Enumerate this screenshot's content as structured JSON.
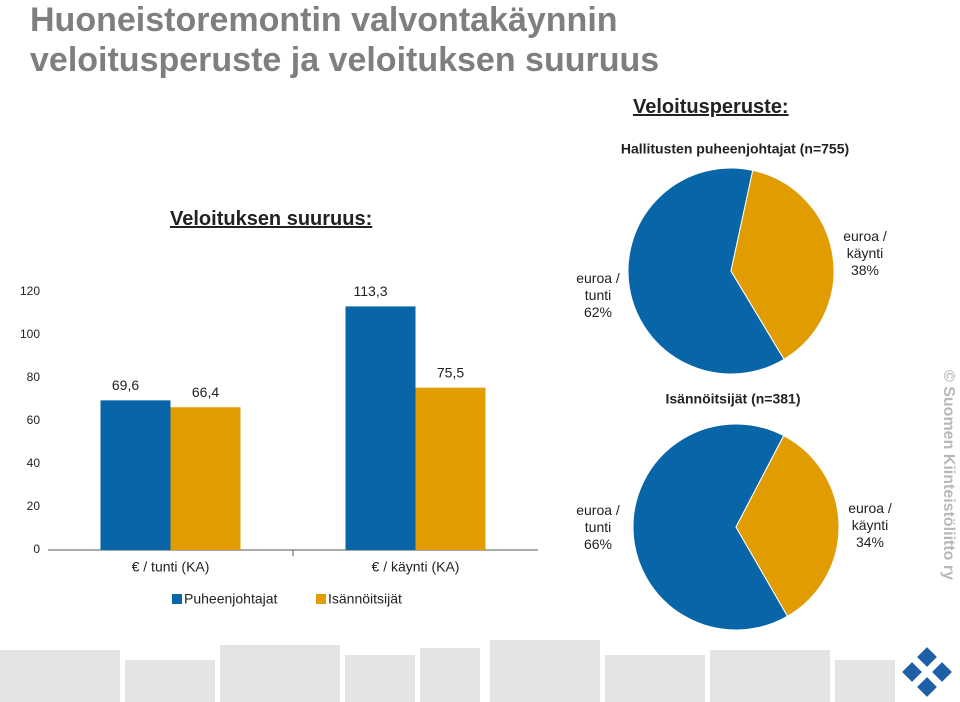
{
  "title": "Huoneistoremontin valvontakäynnin veloitusperuste ja veloituksen suuruus",
  "headings": {
    "basis": "Veloitusperuste:",
    "amount": "Veloituksen suuruus:"
  },
  "watermark": "© Suomen Kiinteistöliitto ry",
  "chart_data": [
    {
      "type": "bar",
      "categories": [
        "€ / tunti (KA)",
        "€ / käynti (KA)"
      ],
      "series": [
        {
          "name": "Puheenjohtajat",
          "color": "#0765a8",
          "values": [
            69.6,
            113.3
          ],
          "value_labels": [
            "69,6",
            "113,3"
          ]
        },
        {
          "name": "Isännöitsijät",
          "color": "#e09c00",
          "values": [
            66.4,
            75.5
          ],
          "value_labels": [
            "66,4",
            "75,5"
          ]
        }
      ],
      "ylim": [
        0,
        120
      ],
      "yticks": [
        0,
        20,
        40,
        60,
        80,
        100,
        120
      ],
      "grid": false
    },
    {
      "type": "pie",
      "title": "Hallitusten puheenjohtajat (n=755)",
      "categories": [
        "euroa / tunti",
        "euroa / käynti"
      ],
      "values": [
        62,
        38
      ],
      "value_labels": [
        "62%",
        "38%"
      ],
      "colors": [
        "#0765a8",
        "#e09c00"
      ]
    },
    {
      "type": "pie",
      "title": "Isännöitsijät (n=381)",
      "categories": [
        "euroa / tunti",
        "euroa / käynti"
      ],
      "values": [
        66,
        34
      ],
      "value_labels": [
        "66%",
        "34%"
      ],
      "colors": [
        "#0765a8",
        "#e09c00"
      ]
    }
  ]
}
